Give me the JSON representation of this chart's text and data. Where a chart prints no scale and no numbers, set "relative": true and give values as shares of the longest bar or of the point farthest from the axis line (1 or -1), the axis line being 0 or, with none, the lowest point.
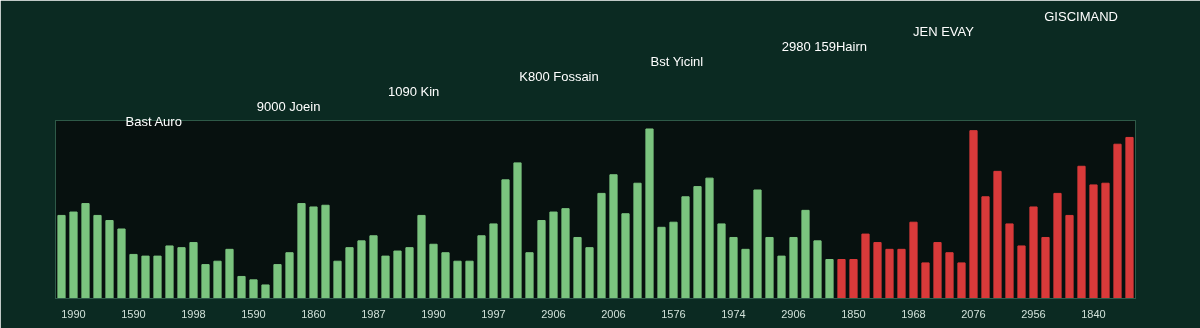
{
  "chart_data": {
    "type": "bar",
    "relative": true,
    "categories": [
      null,
      "1990",
      null,
      null,
      null,
      null,
      "1590",
      null,
      null,
      null,
      null,
      "1998",
      null,
      null,
      null,
      null,
      "1590",
      null,
      null,
      null,
      null,
      "1860",
      null,
      null,
      null,
      null,
      "1987",
      null,
      null,
      null,
      null,
      "1990",
      null,
      null,
      null,
      null,
      "1997",
      null,
      null,
      null,
      null,
      "2906",
      null,
      null,
      null,
      null,
      "2006",
      null,
      null,
      null,
      null,
      "1576",
      null,
      null,
      null,
      null,
      "1974",
      null,
      null,
      null,
      null,
      "2906",
      null,
      null,
      null,
      null,
      "1850",
      null,
      null,
      null,
      null,
      "1968",
      null,
      null,
      null,
      null,
      "2076",
      null,
      null,
      null,
      null,
      "2956",
      null,
      null,
      null,
      null,
      "1840",
      null,
      null,
      null
    ],
    "values": [
      0.49,
      0.51,
      0.56,
      0.49,
      0.46,
      0.41,
      0.26,
      0.25,
      0.25,
      0.31,
      0.3,
      0.33,
      0.2,
      0.22,
      0.29,
      0.13,
      0.11,
      0.08,
      0.2,
      0.27,
      0.56,
      0.54,
      0.55,
      0.22,
      0.3,
      0.34,
      0.37,
      0.25,
      0.28,
      0.3,
      0.49,
      0.32,
      0.27,
      0.22,
      0.22,
      0.37,
      0.44,
      0.7,
      0.8,
      0.27,
      0.46,
      0.51,
      0.53,
      0.36,
      0.3,
      0.62,
      0.73,
      0.5,
      0.68,
      1.0,
      0.42,
      0.45,
      0.6,
      0.66,
      0.71,
      0.44,
      0.36,
      0.29,
      0.64,
      0.36,
      0.25,
      0.36,
      0.52,
      0.34,
      0.23,
      0.23,
      0.23,
      0.38,
      0.33,
      0.29,
      0.29,
      0.45,
      0.21,
      0.33,
      0.27,
      0.21,
      0.99,
      0.6,
      0.75,
      0.44,
      0.31,
      0.54,
      0.36,
      0.62,
      0.49,
      0.78,
      0.67,
      0.68,
      0.91,
      0.95
    ],
    "colors": [
      "#7bc47f",
      "#7bc47f",
      "#7bc47f",
      "#7bc47f",
      "#7bc47f",
      "#7bc47f",
      "#7bc47f",
      "#7bc47f",
      "#7bc47f",
      "#7bc47f",
      "#7bc47f",
      "#7bc47f",
      "#7bc47f",
      "#7bc47f",
      "#7bc47f",
      "#7bc47f",
      "#7bc47f",
      "#7bc47f",
      "#7bc47f",
      "#7bc47f",
      "#7bc47f",
      "#7bc47f",
      "#7bc47f",
      "#7bc47f",
      "#7bc47f",
      "#7bc47f",
      "#7bc47f",
      "#7bc47f",
      "#7bc47f",
      "#7bc47f",
      "#7bc47f",
      "#7bc47f",
      "#7bc47f",
      "#7bc47f",
      "#7bc47f",
      "#7bc47f",
      "#7bc47f",
      "#7bc47f",
      "#7bc47f",
      "#7bc47f",
      "#7bc47f",
      "#7bc47f",
      "#7bc47f",
      "#7bc47f",
      "#7bc47f",
      "#7bc47f",
      "#7bc47f",
      "#7bc47f",
      "#7bc47f",
      "#7bc47f",
      "#7bc47f",
      "#7bc47f",
      "#7bc47f",
      "#7bc47f",
      "#7bc47f",
      "#7bc47f",
      "#7bc47f",
      "#7bc47f",
      "#7bc47f",
      "#7bc47f",
      "#7bc47f",
      "#7bc47f",
      "#7bc47f",
      "#7bc47f",
      "#7bc47f",
      "#d93a3a",
      "#d93a3a",
      "#d93a3a",
      "#d93a3a",
      "#d93a3a",
      "#d93a3a",
      "#d93a3a",
      "#d93a3a",
      "#d93a3a",
      "#d93a3a",
      "#d93a3a",
      "#d93a3a",
      "#d93a3a",
      "#d93a3a",
      "#d93a3a",
      "#d93a3a",
      "#d93a3a",
      "#d93a3a",
      "#d93a3a",
      "#d93a3a",
      "#d93a3a",
      "#d93a3a",
      "#d93a3a",
      "#d93a3a",
      "#d93a3a"
    ],
    "annotations": [
      "Bast Auro",
      "9000 Joein",
      "1090 Kin",
      "K800 Fossain",
      "Bst Yicinl",
      "2980 159Hairn",
      "JEN EVAY",
      "GISCIMAND"
    ]
  }
}
